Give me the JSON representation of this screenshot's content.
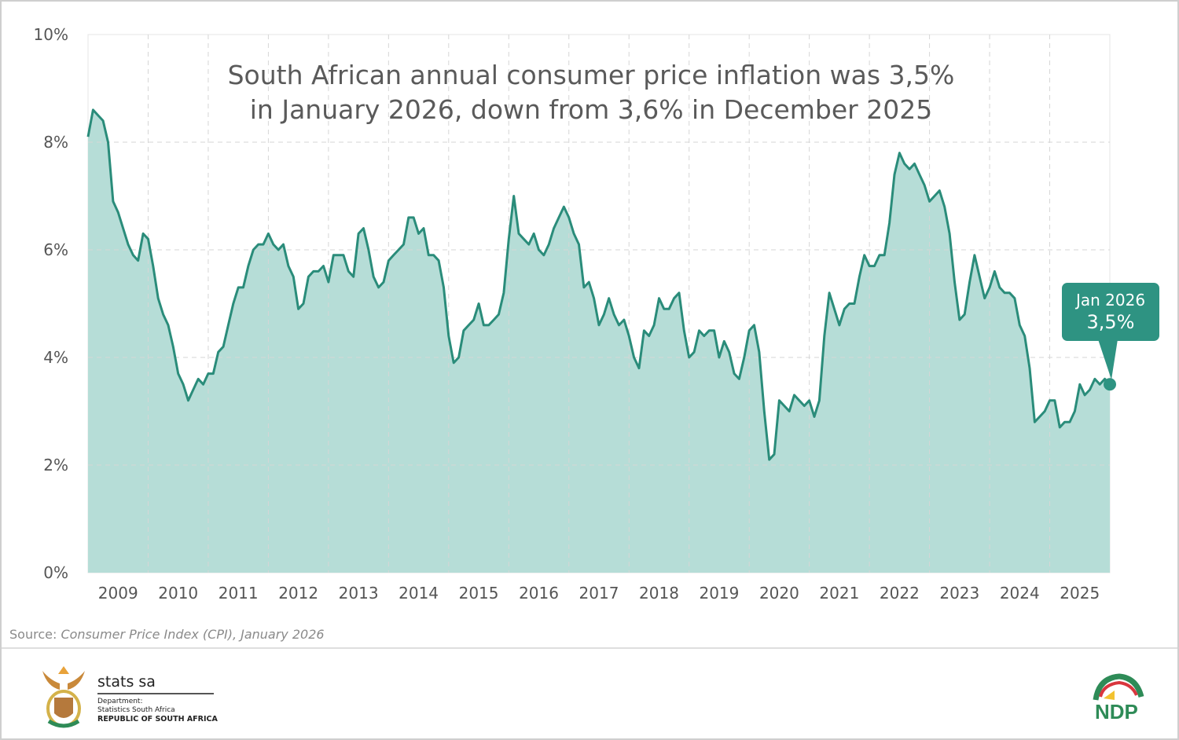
{
  "chart_data": {
    "type": "area",
    "title": "South African annual consumer price inflation was 3,5% in January 2026, down from 3,6% in December 2025",
    "title_lines": [
      "South African annual consumer price inflation was 3,5%",
      "in January 2026, down from 3,6% in December 2025"
    ],
    "xlabel": "",
    "ylabel": "",
    "ylim": [
      0,
      10
    ],
    "y_ticks": [
      "0%",
      "2%",
      "4%",
      "6%",
      "8%",
      "10%"
    ],
    "x_ticks": [
      "2009",
      "2010",
      "2011",
      "2012",
      "2013",
      "2014",
      "2015",
      "2016",
      "2017",
      "2018",
      "2019",
      "2020",
      "2021",
      "2022",
      "2023",
      "2024",
      "2025"
    ],
    "x_start": "Jan 2009",
    "x_end": "Jan 2026",
    "frequency": "monthly",
    "grid": true,
    "colors": {
      "line": "#2a8c7a",
      "fill": "#b6ddd7",
      "callout": "#2e9382"
    },
    "values": [
      8.1,
      8.6,
      8.5,
      8.4,
      8.0,
      6.9,
      6.7,
      6.4,
      6.1,
      5.9,
      5.8,
      6.3,
      6.2,
      5.7,
      5.1,
      4.8,
      4.6,
      4.2,
      3.7,
      3.5,
      3.2,
      3.4,
      3.6,
      3.5,
      3.7,
      3.7,
      4.1,
      4.2,
      4.6,
      5.0,
      5.3,
      5.3,
      5.7,
      6.0,
      6.1,
      6.1,
      6.3,
      6.1,
      6.0,
      6.1,
      5.7,
      5.5,
      4.9,
      5.0,
      5.5,
      5.6,
      5.6,
      5.7,
      5.4,
      5.9,
      5.9,
      5.9,
      5.6,
      5.5,
      6.3,
      6.4,
      6.0,
      5.5,
      5.3,
      5.4,
      5.8,
      5.9,
      6.0,
      6.1,
      6.6,
      6.6,
      6.3,
      6.4,
      5.9,
      5.9,
      5.8,
      5.3,
      4.4,
      3.9,
      4.0,
      4.5,
      4.6,
      4.7,
      5.0,
      4.6,
      4.6,
      4.7,
      4.8,
      5.2,
      6.2,
      7.0,
      6.3,
      6.2,
      6.1,
      6.3,
      6.0,
      5.9,
      6.1,
      6.4,
      6.6,
      6.8,
      6.6,
      6.3,
      6.1,
      5.3,
      5.4,
      5.1,
      4.6,
      4.8,
      5.1,
      4.8,
      4.6,
      4.7,
      4.4,
      4.0,
      3.8,
      4.5,
      4.4,
      4.6,
      5.1,
      4.9,
      4.9,
      5.1,
      5.2,
      4.5,
      4.0,
      4.1,
      4.5,
      4.4,
      4.5,
      4.5,
      4.0,
      4.3,
      4.1,
      3.7,
      3.6,
      4.0,
      4.5,
      4.6,
      4.1,
      3.0,
      2.1,
      2.2,
      3.2,
      3.1,
      3.0,
      3.3,
      3.2,
      3.1,
      3.2,
      2.9,
      3.2,
      4.4,
      5.2,
      4.9,
      4.6,
      4.9,
      5.0,
      5.0,
      5.5,
      5.9,
      5.7,
      5.7,
      5.9,
      5.9,
      6.5,
      7.4,
      7.8,
      7.6,
      7.5,
      7.6,
      7.4,
      7.2,
      6.9,
      7.0,
      7.1,
      6.8,
      6.3,
      5.4,
      4.7,
      4.8,
      5.4,
      5.9,
      5.5,
      5.1,
      5.3,
      5.6,
      5.3,
      5.2,
      5.2,
      5.1,
      4.6,
      4.4,
      3.8,
      2.8,
      2.9,
      3.0,
      3.2,
      3.2,
      2.7,
      2.8,
      2.8,
      3.0,
      3.5,
      3.3,
      3.4,
      3.6,
      3.5,
      3.6,
      3.5
    ],
    "annotation": {
      "label": "Jan 2026",
      "value": "3,5%"
    }
  },
  "source": {
    "prefix": "Source: ",
    "text": "Consumer Price Index (CPI), January 2026"
  },
  "footer": {
    "logo_name": "stats sa",
    "dept_label": "Department:",
    "dept_name": "Statistics South Africa",
    "country": "REPUBLIC OF SOUTH AFRICA",
    "ndp_logo": "NDP 2030"
  }
}
